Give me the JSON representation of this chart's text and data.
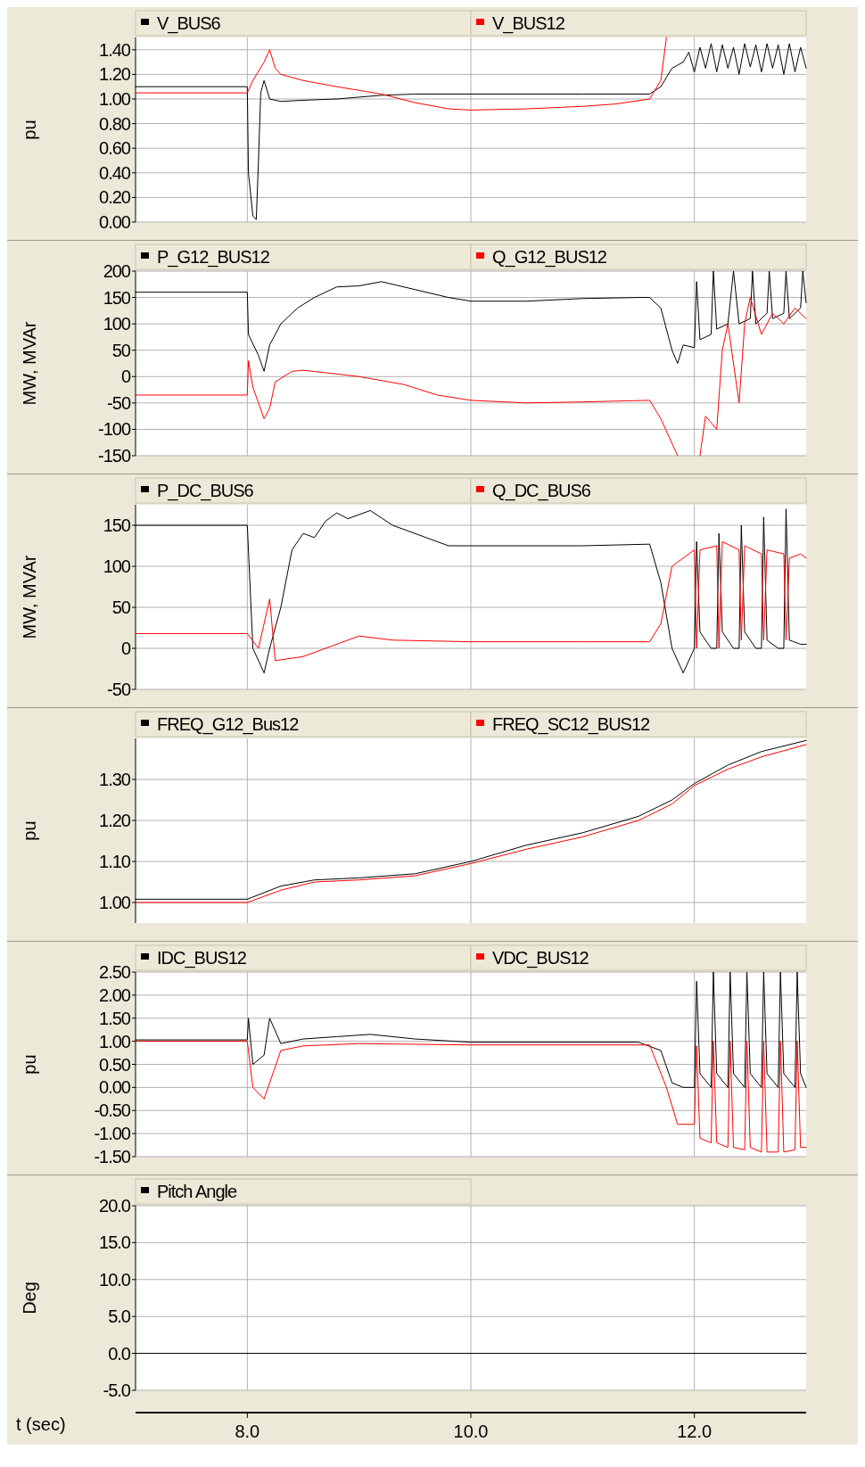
{
  "chart_data": [
    {
      "type": "line",
      "ylabel": "pu",
      "xlim": [
        7,
        13
      ],
      "xticks": [
        8,
        10,
        12
      ],
      "ylim": [
        0,
        1.5
      ],
      "yticks": [
        {
          "value": 0,
          "label": "0.00"
        },
        {
          "value": 0.2,
          "label": "0.20"
        },
        {
          "value": 0.4,
          "label": "0.40"
        },
        {
          "value": 0.6,
          "label": "0.60"
        },
        {
          "value": 0.8,
          "label": "0.80"
        },
        {
          "value": 1,
          "label": "1.00"
        },
        {
          "value": 1.2,
          "label": "1.20"
        },
        {
          "value": 1.4,
          "label": "1.40"
        }
      ],
      "grid": true,
      "legend": "top",
      "tick_labels": "y",
      "series": [
        {
          "name": "V_BUS6",
          "color": "#000000",
          "x": [
            7,
            8,
            8.01,
            8.05,
            8.08,
            8.1,
            8.12,
            8.15,
            8.2,
            8.3,
            8.5,
            8.8,
            9.2,
            9.5,
            10,
            11,
            11.6,
            11.7,
            11.8,
            11.9,
            11.95,
            12,
            12.05,
            12.1,
            12.15,
            12.2,
            12.25,
            12.3,
            12.35,
            12.4,
            12.45,
            12.5,
            12.55,
            12.6,
            12.65,
            12.7,
            12.75,
            12.8,
            12.85,
            12.9,
            12.95,
            13
          ],
          "values": [
            1.1,
            1.1,
            0.4,
            0.05,
            0.02,
            0.5,
            1.05,
            1.15,
            1.0,
            0.98,
            0.99,
            1.0,
            1.03,
            1.04,
            1.04,
            1.04,
            1.04,
            1.1,
            1.25,
            1.3,
            1.38,
            1.22,
            1.42,
            1.25,
            1.45,
            1.22,
            1.44,
            1.25,
            1.42,
            1.2,
            1.45,
            1.26,
            1.44,
            1.22,
            1.45,
            1.25,
            1.44,
            1.2,
            1.45,
            1.22,
            1.42,
            1.25
          ]
        },
        {
          "name": "V_BUS12",
          "color": "#ff0000",
          "x": [
            7,
            8,
            8.05,
            8.15,
            8.2,
            8.25,
            8.3,
            8.5,
            8.8,
            9.2,
            9.5,
            9.8,
            10,
            10.5,
            11,
            11.3,
            11.6,
            11.7,
            11.75
          ],
          "values": [
            1.05,
            1.05,
            1.15,
            1.3,
            1.4,
            1.25,
            1.2,
            1.15,
            1.1,
            1.04,
            0.97,
            0.92,
            0.91,
            0.92,
            0.94,
            0.96,
            1.0,
            1.15,
            1.5
          ]
        }
      ]
    },
    {
      "type": "line",
      "ylabel": "MW, MVAr",
      "xlim": [
        7,
        13
      ],
      "xticks": [
        8,
        10,
        12
      ],
      "ylim": [
        -150,
        200
      ],
      "yticks": [
        -150,
        -100,
        -50,
        0,
        50,
        100,
        150,
        200
      ],
      "grid": true,
      "legend": "top",
      "tick_labels": "y",
      "series": [
        {
          "name": "P_G12_BUS12",
          "color": "#000000",
          "x": [
            7,
            8,
            8.01,
            8.1,
            8.15,
            8.2,
            8.3,
            8.45,
            8.6,
            8.8,
            9.0,
            9.2,
            9.5,
            9.8,
            10,
            10.5,
            11,
            11.5,
            11.6,
            11.7,
            11.8,
            11.85,
            11.9,
            12,
            12.02,
            12.05,
            12.15,
            12.17,
            12.2,
            12.3,
            12.35,
            12.4,
            12.5,
            12.52,
            12.55,
            12.65,
            12.67,
            12.7,
            12.8,
            12.82,
            12.85,
            12.95,
            12.97,
            13
          ],
          "values": [
            160,
            160,
            80,
            40,
            10,
            60,
            100,
            130,
            150,
            170,
            172,
            180,
            165,
            150,
            143,
            143,
            148,
            150,
            150,
            130,
            50,
            25,
            60,
            55,
            180,
            70,
            80,
            200,
            90,
            100,
            200,
            100,
            110,
            200,
            100,
            120,
            200,
            110,
            120,
            200,
            110,
            130,
            200,
            140
          ]
        },
        {
          "name": "Q_G12_BUS12",
          "color": "#ff0000",
          "x": [
            7,
            8,
            8.01,
            8.05,
            8.15,
            8.2,
            8.25,
            8.4,
            8.5,
            8.8,
            9.0,
            9.4,
            9.7,
            10,
            10.5,
            11,
            11.6,
            11.7,
            11.85,
            11.9,
            12.05,
            12.1,
            12.2,
            12.25,
            12.3,
            12.4,
            12.45,
            12.5,
            12.6,
            12.7,
            12.8,
            12.9,
            13
          ],
          "values": [
            -35,
            -35,
            30,
            -20,
            -80,
            -60,
            -10,
            10,
            12,
            5,
            0,
            -15,
            -35,
            -45,
            -50,
            -48,
            -45,
            -80,
            -150,
            null,
            -150,
            -75,
            -100,
            50,
            100,
            -50,
            100,
            150,
            80,
            120,
            100,
            130,
            110
          ]
        }
      ]
    },
    {
      "type": "line",
      "ylabel": "MW, MVAr",
      "xlim": [
        7,
        13
      ],
      "xticks": [
        8,
        10,
        12
      ],
      "ylim": [
        -50,
        175
      ],
      "yticks": [
        -50,
        0,
        50,
        100,
        150
      ],
      "grid": true,
      "legend": "top",
      "tick_labels": "y",
      "series": [
        {
          "name": "P_DC_BUS6",
          "color": "#000000",
          "x": [
            7,
            8,
            8.05,
            8.15,
            8.2,
            8.3,
            8.4,
            8.5,
            8.6,
            8.7,
            8.8,
            8.9,
            9.1,
            9.3,
            9.6,
            9.8,
            10,
            11,
            11.6,
            11.7,
            11.8,
            11.9,
            12,
            12.02,
            12.05,
            12.15,
            12.2,
            12.22,
            12.25,
            12.35,
            12.4,
            12.42,
            12.45,
            12.55,
            12.6,
            12.62,
            12.65,
            12.75,
            12.8,
            12.82,
            12.85,
            12.95,
            13
          ],
          "values": [
            150,
            150,
            0,
            -30,
            0,
            50,
            120,
            140,
            135,
            155,
            165,
            158,
            168,
            150,
            135,
            125,
            125,
            125,
            127,
            80,
            0,
            -30,
            0,
            130,
            20,
            0,
            0,
            140,
            20,
            0,
            0,
            150,
            20,
            0,
            0,
            160,
            10,
            0,
            0,
            170,
            10,
            5,
            5
          ]
        },
        {
          "name": "Q_DC_BUS6",
          "color": "#ff0000",
          "x": [
            7,
            8,
            8.1,
            8.2,
            8.25,
            8.5,
            8.7,
            9.0,
            9.3,
            10,
            11,
            11.6,
            11.7,
            11.8,
            12,
            12.02,
            12.05,
            12.2,
            12.22,
            12.25,
            12.4,
            12.42,
            12.45,
            12.6,
            12.62,
            12.65,
            12.8,
            12.82,
            12.85,
            12.95,
            13
          ],
          "values": [
            18,
            18,
            0,
            60,
            -15,
            -10,
            0,
            15,
            10,
            8,
            8,
            8,
            30,
            100,
            120,
            0,
            120,
            125,
            0,
            130,
            120,
            10,
            125,
            115,
            10,
            120,
            115,
            10,
            110,
            115,
            110
          ]
        }
      ]
    },
    {
      "type": "line",
      "ylabel": "pu",
      "xlim": [
        7,
        13
      ],
      "xticks": [
        8,
        10,
        12
      ],
      "ylim": [
        0.95,
        1.4
      ],
      "yticks": [
        {
          "value": 1,
          "label": "1.00"
        },
        {
          "value": 1.1,
          "label": "1.10"
        },
        {
          "value": 1.2,
          "label": "1.20"
        },
        {
          "value": 1.3,
          "label": "1.30"
        }
      ],
      "grid": true,
      "legend": "top",
      "tick_labels": "y",
      "series": [
        {
          "name": "FREQ_G12_Bus12",
          "color": "#000000",
          "x": [
            7,
            8,
            8.3,
            8.6,
            9,
            9.5,
            10,
            10.5,
            11,
            11.5,
            11.8,
            12,
            12.3,
            12.6,
            13
          ],
          "values": [
            1.008,
            1.008,
            1.04,
            1.055,
            1.06,
            1.07,
            1.1,
            1.14,
            1.17,
            1.21,
            1.25,
            1.29,
            1.335,
            1.368,
            1.395
          ]
        },
        {
          "name": "FREQ_SC12_BUS12",
          "color": "#ff0000",
          "x": [
            7,
            8,
            8.3,
            8.6,
            9,
            9.5,
            10,
            10.5,
            11,
            11.5,
            11.8,
            12,
            12.3,
            12.6,
            13
          ],
          "values": [
            1,
            1,
            1.03,
            1.05,
            1.055,
            1.065,
            1.095,
            1.13,
            1.16,
            1.2,
            1.24,
            1.285,
            1.325,
            1.355,
            1.385
          ]
        }
      ]
    },
    {
      "type": "line",
      "ylabel": "pu",
      "xlim": [
        7,
        13
      ],
      "xticks": [
        8,
        10,
        12
      ],
      "ylim": [
        -1.5,
        2.5
      ],
      "yticks": [
        {
          "value": -1.5,
          "label": "-1.50"
        },
        {
          "value": -1,
          "label": "-1.00"
        },
        {
          "value": -0.5,
          "label": "-0.50"
        },
        {
          "value": 0,
          "label": "0.00"
        },
        {
          "value": 0.5,
          "label": "0.50"
        },
        {
          "value": 1,
          "label": "1.00"
        },
        {
          "value": 1.5,
          "label": "1.50"
        },
        {
          "value": 2,
          "label": "2.00"
        },
        {
          "value": 2.5,
          "label": "2.50"
        }
      ],
      "grid": true,
      "legend": "top",
      "tick_labels": "y",
      "series": [
        {
          "name": "IDC_BUS12",
          "color": "#000000",
          "x": [
            7,
            8,
            8.01,
            8.05,
            8.15,
            8.2,
            8.3,
            8.5,
            8.8,
            9.1,
            9.5,
            10,
            11.5,
            11.7,
            11.8,
            11.9,
            12,
            12.02,
            12.05,
            12.15,
            12.17,
            12.2,
            12.3,
            12.32,
            12.35,
            12.45,
            12.47,
            12.5,
            12.6,
            12.62,
            12.65,
            12.75,
            12.77,
            12.8,
            12.9,
            12.92,
            12.95,
            13
          ],
          "values": [
            1.03,
            1.03,
            1.5,
            0.5,
            0.7,
            1.5,
            0.95,
            1.05,
            1.1,
            1.15,
            1.05,
            0.98,
            0.98,
            0.8,
            0.1,
            0,
            0,
            2.3,
            0.3,
            0,
            2.5,
            0.3,
            0,
            2.5,
            0.3,
            0,
            2.5,
            0.3,
            0,
            2.5,
            0.3,
            0,
            2.5,
            0.3,
            0,
            2.5,
            0.3,
            0
          ]
        },
        {
          "name": "VDC_BUS12",
          "color": "#ff0000",
          "x": [
            7,
            8,
            8.05,
            8.15,
            8.3,
            8.5,
            9,
            10,
            11.6,
            11.75,
            11.85,
            12,
            12.02,
            12.05,
            12.15,
            12.17,
            12.2,
            12.3,
            12.32,
            12.35,
            12.45,
            12.47,
            12.5,
            12.6,
            12.62,
            12.65,
            12.75,
            12.77,
            12.8,
            12.9,
            12.92,
            12.95,
            13
          ],
          "values": [
            1,
            1,
            0,
            -0.25,
            0.8,
            0.9,
            0.95,
            0.92,
            0.92,
            0,
            -0.8,
            -0.8,
            0.9,
            -1.1,
            -1.2,
            1.0,
            -1.2,
            -1.3,
            1.0,
            -1.3,
            -1.35,
            1.0,
            -1.3,
            -1.4,
            1.0,
            -1.4,
            -1.4,
            1.0,
            -1.4,
            -1.35,
            1.0,
            -1.3,
            -1.3
          ]
        }
      ]
    },
    {
      "type": "line",
      "ylabel": "Deg",
      "xlabel": "t (sec)",
      "xlim": [
        7,
        13
      ],
      "xticks": [
        {
          "value": 8,
          "label": "8.0"
        },
        {
          "value": 10,
          "label": "10.0"
        },
        {
          "value": 12,
          "label": "12.0"
        }
      ],
      "ylim": [
        -5,
        20
      ],
      "yticks": [
        {
          "value": -5,
          "label": "-5.0"
        },
        {
          "value": 0,
          "label": "0.0"
        },
        {
          "value": 5,
          "label": "5.0"
        },
        {
          "value": 10,
          "label": "10.0"
        },
        {
          "value": 15,
          "label": "15.0"
        },
        {
          "value": 20,
          "label": "20.0"
        }
      ],
      "grid": true,
      "legend": "top",
      "series": [
        {
          "name": "Pitch Angle",
          "color": "#000000",
          "x": [
            7,
            13
          ],
          "values": [
            0,
            0
          ]
        }
      ]
    }
  ]
}
